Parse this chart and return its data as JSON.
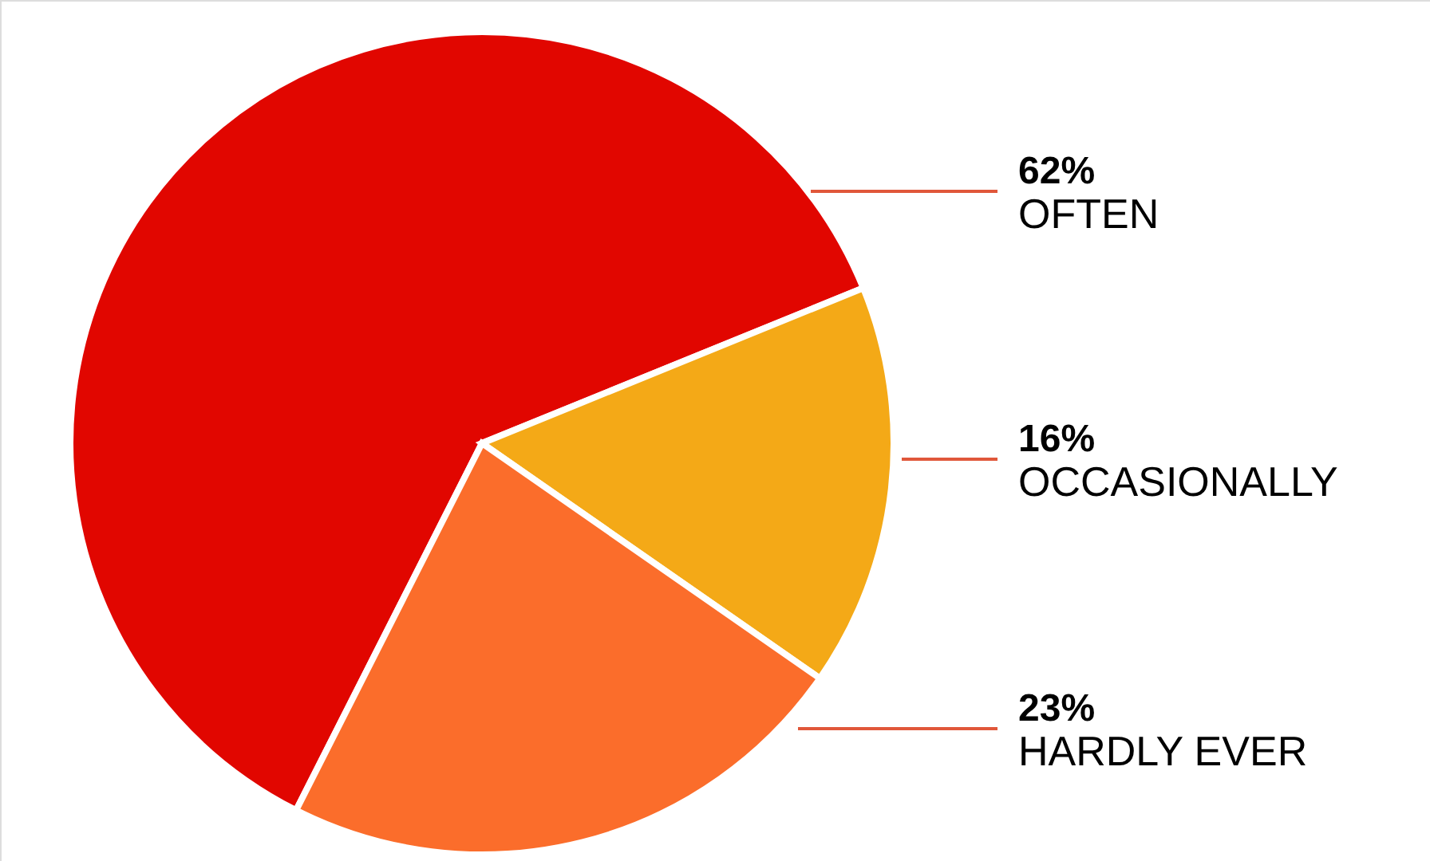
{
  "chart_data": {
    "type": "pie",
    "categories": [
      "OFTEN",
      "OCCASIONALLY",
      "HARDLY EVER"
    ],
    "values": [
      62,
      16,
      23
    ],
    "value_labels": [
      "62%",
      "16%",
      "23%"
    ],
    "colors": [
      "#e10600",
      "#f4a917",
      "#fb6d2b"
    ]
  }
}
